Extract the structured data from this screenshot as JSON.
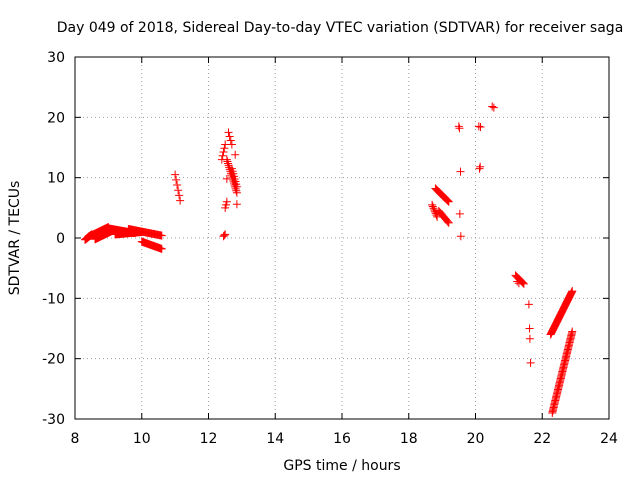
{
  "chart_data": {
    "type": "scatter",
    "title": "Day 049 of 2018, Sidereal Day-to-day VTEC variation (SDTVAR) for receiver saga",
    "xlabel": "GPS time / hours",
    "ylabel": "SDTVAR / TECUs",
    "xlim": [
      8,
      24
    ],
    "ylim": [
      -30,
      30
    ],
    "xticks": [
      8,
      10,
      12,
      14,
      16,
      18,
      20,
      22,
      24
    ],
    "yticks": [
      -30,
      -20,
      -10,
      0,
      10,
      20,
      30
    ],
    "xtick_labels": [
      "8",
      "10",
      "12",
      "14",
      "16",
      "18",
      "20",
      "22",
      "24"
    ],
    "ytick_labels": [
      "-30",
      "-20",
      "-10",
      "0",
      "10",
      "20",
      "30"
    ],
    "grid": true,
    "marker": "+",
    "color": "#ff0000",
    "series": [
      {
        "name": "SDTVAR",
        "segments": [
          {
            "x0": 8.3,
            "x1": 8.5,
            "y0": -0.3,
            "y1": 0.6,
            "n": 18
          },
          {
            "x0": 8.4,
            "x1": 9.0,
            "y0": 0.2,
            "y1": 1.8,
            "n": 40
          },
          {
            "x0": 8.6,
            "x1": 9.2,
            "y0": -0.2,
            "y1": 1.4,
            "n": 40
          },
          {
            "x0": 9.0,
            "x1": 9.8,
            "y0": 1.6,
            "y1": 0.8,
            "n": 40
          },
          {
            "x0": 9.2,
            "x1": 10.0,
            "y0": 0.6,
            "y1": 1.0,
            "n": 40
          },
          {
            "x0": 9.6,
            "x1": 10.6,
            "y0": 1.5,
            "y1": 0.4,
            "n": 40
          },
          {
            "x0": 10.0,
            "x1": 10.6,
            "y0": -0.6,
            "y1": -1.8,
            "n": 30
          },
          {
            "x0": 11.0,
            "x1": 11.15,
            "y0": 10.5,
            "y1": 6.2,
            "n": 6
          },
          {
            "x0": 12.4,
            "x1": 12.5,
            "y0": 13.0,
            "y1": 15.5,
            "n": 5
          },
          {
            "x0": 12.5,
            "x1": 12.55,
            "y0": 5.0,
            "y1": 6.0,
            "n": 3
          },
          {
            "x0": 12.45,
            "x1": 12.5,
            "y0": 0.3,
            "y1": 0.6,
            "n": 3
          },
          {
            "x0": 12.6,
            "x1": 12.7,
            "y0": 17.5,
            "y1": 15.5,
            "n": 4
          },
          {
            "x0": 12.55,
            "x1": 12.85,
            "y0": 13.0,
            "y1": 7.5,
            "n": 18
          },
          {
            "x0": 12.7,
            "x1": 12.85,
            "y0": 11.5,
            "y1": 8.5,
            "n": 8
          },
          {
            "x0": 18.7,
            "x1": 18.85,
            "y0": 5.5,
            "y1": 3.5,
            "n": 8
          },
          {
            "x0": 18.8,
            "x1": 19.2,
            "y0": 8.2,
            "y1": 6.0,
            "n": 18
          },
          {
            "x0": 18.9,
            "x1": 19.2,
            "y0": 4.5,
            "y1": 2.5,
            "n": 12
          },
          {
            "x0": 21.2,
            "x1": 21.45,
            "y0": -6.2,
            "y1": -7.6,
            "n": 10
          },
          {
            "x0": 22.25,
            "x1": 22.9,
            "y0": -16.0,
            "y1": -8.8,
            "n": 55
          },
          {
            "x0": 22.3,
            "x1": 22.9,
            "y0": -29.0,
            "y1": -15.5,
            "n": 60
          }
        ],
        "points": [
          [
            12.8,
            13.8
          ],
          [
            12.85,
            5.6
          ],
          [
            12.55,
            9.8
          ],
          [
            19.5,
            18.5
          ],
          [
            19.52,
            18.2
          ],
          [
            19.55,
            11.0
          ],
          [
            19.53,
            4.0
          ],
          [
            19.56,
            0.3
          ],
          [
            20.1,
            18.5
          ],
          [
            20.15,
            18.4
          ],
          [
            20.12,
            11.5
          ],
          [
            20.14,
            11.8
          ],
          [
            20.5,
            21.8
          ],
          [
            20.55,
            21.6
          ],
          [
            21.6,
            -11.0
          ],
          [
            21.62,
            -15.0
          ],
          [
            21.63,
            -16.7
          ],
          [
            21.65,
            -20.7
          ],
          [
            21.3,
            -7.5
          ],
          [
            21.25,
            -7.2
          ]
        ]
      }
    ]
  }
}
